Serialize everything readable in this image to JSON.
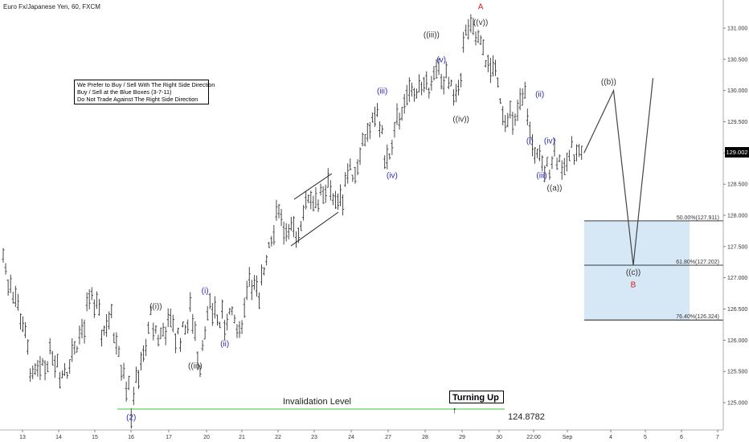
{
  "header": {
    "title": "Euro Fx/Japanese Yen, 60, FXCM"
  },
  "info_box": {
    "lines": [
      "We Prefer to Buy / Sell With The Right Side Direction",
      "Buy / Sell at the Blue Boxes (3-7-11)",
      "Do Not Trade Against The Right Side Direction"
    ]
  },
  "last_price": "129.002",
  "turning_up": {
    "label": "Turning Up",
    "arrow": "↑"
  },
  "invalidation": {
    "label": "Invalidation Level",
    "value": "124.8782"
  },
  "colors": {
    "blue_label": "#2b2bb3",
    "red_label": "#d81e1e",
    "box_fill": "#cfe3f5",
    "invalidation_line": "#3cc43c"
  },
  "chart_data": {
    "type": "candlestick",
    "symbol": "Euro Fx/Japanese Yen, 60, FXCM",
    "ylim": [
      124.7,
      131.35
    ],
    "yticks": [
      "131.000",
      "130.500",
      "130.000",
      "129.500",
      "129.000",
      "128.500",
      "128.000",
      "127.500",
      "127.000",
      "126.500",
      "126.000",
      "125.500",
      "125.000"
    ],
    "xticks": [
      "13",
      "14",
      "15",
      "16",
      "17",
      "20",
      "21",
      "22",
      "23",
      "24",
      "27",
      "28",
      "29",
      "30",
      "22:00",
      "Sep",
      "4",
      "5",
      "6",
      "7"
    ],
    "price_path": [
      [
        0,
        127.3
      ],
      [
        2,
        126.2
      ],
      [
        3,
        125.3
      ],
      [
        5,
        125.9
      ],
      [
        6,
        125.4
      ],
      [
        8,
        126.1
      ],
      [
        9,
        126.8
      ],
      [
        10,
        126.1
      ],
      [
        11,
        126.3
      ],
      [
        12,
        125.7
      ],
      [
        13,
        124.9
      ],
      [
        15,
        126.3
      ],
      [
        16,
        126.0
      ],
      [
        17,
        126.3
      ],
      [
        18,
        126.0
      ],
      [
        19,
        126.4
      ],
      [
        20,
        125.7
      ],
      [
        21,
        126.6
      ],
      [
        22,
        126.3
      ],
      [
        23,
        126.4
      ],
      [
        24,
        126.1
      ],
      [
        25,
        127.0
      ],
      [
        26,
        126.6
      ],
      [
        27,
        127.6
      ],
      [
        28,
        128.1
      ],
      [
        29,
        127.6
      ],
      [
        30,
        127.8
      ],
      [
        31,
        128.3
      ],
      [
        32,
        128.2
      ],
      [
        33,
        128.4
      ],
      [
        34,
        128.2
      ],
      [
        35,
        128.6
      ],
      [
        36,
        128.9
      ],
      [
        37,
        129.3
      ],
      [
        38,
        129.6
      ],
      [
        39,
        128.8
      ],
      [
        40,
        129.4
      ],
      [
        41,
        129.9
      ],
      [
        42,
        130.0
      ],
      [
        43,
        130.1
      ],
      [
        44,
        130.3
      ],
      [
        45,
        130.1
      ],
      [
        46,
        129.8
      ],
      [
        47,
        130.9
      ],
      [
        48,
        130.8
      ],
      [
        49,
        130.5
      ],
      [
        50,
        130.3
      ],
      [
        51,
        129.6
      ],
      [
        52,
        129.5
      ],
      [
        53,
        129.8
      ],
      [
        54,
        129.0
      ],
      [
        55,
        128.6
      ],
      [
        56,
        129.0
      ],
      [
        57,
        128.7
      ],
      [
        58,
        129.1
      ],
      [
        59,
        129.0
      ]
    ],
    "projection_path": [
      [
        59,
        129.0
      ],
      [
        62,
        130.0
      ],
      [
        64,
        127.2
      ],
      [
        66,
        130.2
      ]
    ],
    "levels": [
      {
        "label": "50.00%(127.911)",
        "value": 127.911
      },
      {
        "label": "61.80%(127.202)",
        "value": 127.202
      },
      {
        "label": "76.40%(126.324)",
        "value": 126.324
      }
    ],
    "wave_labels": [
      {
        "text": "(2)",
        "x": 13,
        "y": 124.72,
        "color": "blue"
      },
      {
        "text": "((i))",
        "x": 15.5,
        "y": 126.5,
        "color": "gray"
      },
      {
        "text": "((ii))",
        "x": 19.5,
        "y": 125.55,
        "color": "gray"
      },
      {
        "text": "(i)",
        "x": 20.5,
        "y": 126.75,
        "color": "blue"
      },
      {
        "text": "(ii)",
        "x": 22.5,
        "y": 125.9,
        "color": "blue"
      },
      {
        "text": "(iii)",
        "x": 38.5,
        "y": 129.95,
        "color": "blue"
      },
      {
        "text": "(iv)",
        "x": 39.5,
        "y": 128.6,
        "color": "blue"
      },
      {
        "text": "((iii))",
        "x": 43.5,
        "y": 130.85,
        "color": "gray"
      },
      {
        "text": "(v)",
        "x": 44.5,
        "y": 130.45,
        "color": "blue"
      },
      {
        "text": "((iv))",
        "x": 46.5,
        "y": 129.5,
        "color": "gray"
      },
      {
        "text": "((v))",
        "x": 48.5,
        "y": 131.05,
        "color": "gray"
      },
      {
        "text": "A",
        "x": 48.5,
        "y": 131.3,
        "color": "red"
      },
      {
        "text": "(i)",
        "x": 53.5,
        "y": 129.15,
        "color": "blue"
      },
      {
        "text": "(ii)",
        "x": 54.5,
        "y": 129.9,
        "color": "blue"
      },
      {
        "text": "(iii)",
        "x": 54.7,
        "y": 128.6,
        "color": "blue"
      },
      {
        "text": "(iv)",
        "x": 55.5,
        "y": 129.15,
        "color": "blue"
      },
      {
        "text": "(a))",
        "x": 56,
        "y": 128.4,
        "color": "gray",
        "full": "((a))"
      },
      {
        "text": "((b))",
        "x": 61.5,
        "y": 130.1,
        "color": "gray"
      },
      {
        "text": "((c))",
        "x": 64,
        "y": 127.05,
        "color": "gray"
      },
      {
        "text": "B",
        "x": 64,
        "y": 126.85,
        "color": "red"
      }
    ]
  }
}
